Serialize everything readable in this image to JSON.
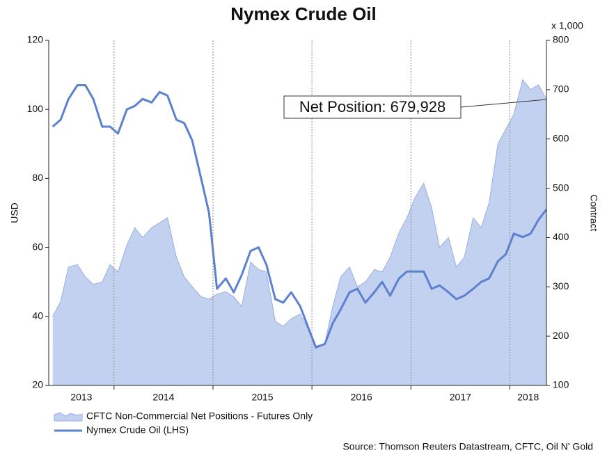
{
  "chart_data": {
    "type": "line",
    "title": "Nymex Crude Oil",
    "y_label": "USD",
    "y2_label": "Contract",
    "y2_unit": "x 1,000",
    "annotation": "Net Position: 679,928",
    "source": "Source: Thomson Reuters Datastream, CFTC, Oil N' Gold",
    "x": [
      2013.38,
      2013.46,
      2013.54,
      2013.63,
      2013.71,
      2013.79,
      2013.88,
      2013.96,
      2014.04,
      2014.13,
      2014.21,
      2014.29,
      2014.38,
      2014.46,
      2014.54,
      2014.63,
      2014.71,
      2014.79,
      2014.88,
      2014.96,
      2015.04,
      2015.13,
      2015.21,
      2015.29,
      2015.38,
      2015.46,
      2015.54,
      2015.63,
      2015.71,
      2015.79,
      2015.88,
      2015.96,
      2016.04,
      2016.13,
      2016.21,
      2016.29,
      2016.38,
      2016.46,
      2016.54,
      2016.63,
      2016.71,
      2016.79,
      2016.88,
      2016.96,
      2017.04,
      2017.13,
      2017.21,
      2017.29,
      2017.38,
      2017.46,
      2017.54,
      2017.63,
      2017.71,
      2017.79,
      2017.88,
      2017.96,
      2018.04,
      2018.13,
      2018.21,
      2018.29,
      2018.37
    ],
    "xlim": [
      2013.34,
      2018.37
    ],
    "xticks": [
      2013,
      2014,
      2015,
      2016,
      2017,
      2018
    ],
    "ylim": [
      20,
      120
    ],
    "yticks": [
      20,
      40,
      60,
      80,
      100,
      120
    ],
    "y2lim": [
      100,
      800
    ],
    "y2ticks": [
      100,
      200,
      300,
      400,
      500,
      600,
      700,
      800
    ],
    "grid": true,
    "series": [
      {
        "name": "CFTC Non-Commercial Net Positions - Futures Only",
        "type": "area",
        "axis": "y2",
        "color": "#c3d1f0",
        "edge": "#98aee0",
        "values": [
          240,
          270,
          340,
          345,
          320,
          305,
          310,
          345,
          330,
          385,
          420,
          400,
          420,
          430,
          440,
          360,
          320,
          300,
          280,
          275,
          285,
          290,
          280,
          260,
          350,
          335,
          330,
          230,
          220,
          235,
          245,
          215,
          180,
          185,
          260,
          320,
          340,
          300,
          310,
          335,
          330,
          360,
          410,
          440,
          480,
          510,
          460,
          380,
          400,
          340,
          360,
          440,
          420,
          470,
          590,
          620,
          650,
          720,
          700,
          710,
          680
        ]
      },
      {
        "name": "Nymex Crude Oil (LHS)",
        "type": "line",
        "color": "#5b80d0",
        "values": [
          95,
          97,
          103,
          107,
          107,
          103,
          95,
          95,
          93,
          100,
          101,
          103,
          102,
          105,
          104,
          97,
          96,
          91,
          80,
          70,
          48,
          51,
          47,
          52,
          59,
          60,
          55,
          45,
          44,
          47,
          43,
          37,
          31,
          32,
          38,
          42,
          47,
          48,
          44,
          47,
          50,
          46,
          51,
          53,
          53,
          53,
          48,
          49,
          47,
          45,
          46,
          48,
          50,
          51,
          56,
          58,
          64,
          63,
          64,
          68,
          71
        ]
      }
    ]
  }
}
